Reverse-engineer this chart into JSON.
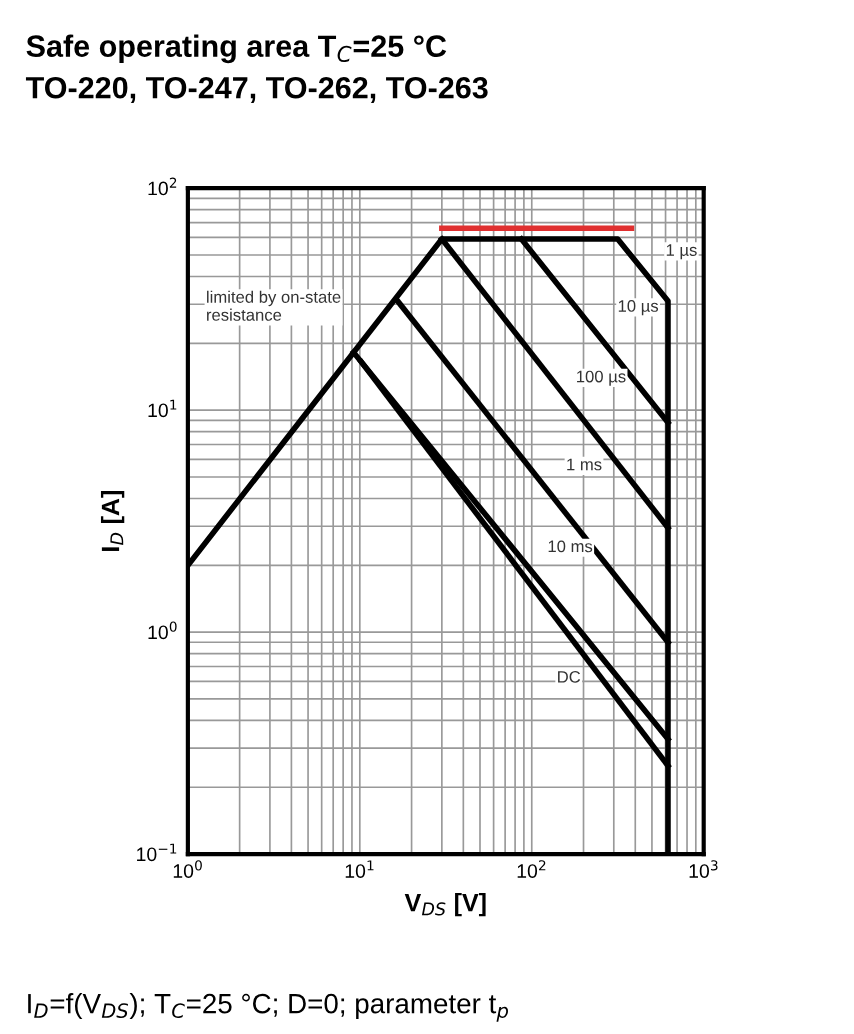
{
  "chart_data": {
    "type": "line",
    "title": "Safe operating area T$_{C}$=25 °C",
    "subtitle": "TO-220, TO-247, TO-262, TO-263",
    "xlabel": "V$_{DS}$ [V]",
    "ylabel": "I$_{D}$ [A]",
    "log": "xy",
    "xlim": [
      1,
      1000
    ],
    "ylim": [
      0.1,
      100
    ],
    "xticks": [
      {
        "value": 1,
        "label": "10$^{0}$"
      },
      {
        "value": 10,
        "label": "10$^{1}$"
      },
      {
        "value": 100,
        "label": "10$^{2}$"
      },
      {
        "value": 1000,
        "label": "10$^{3}$"
      }
    ],
    "yticks": [
      {
        "value": 0.1,
        "label": "10$^{−1}$"
      },
      {
        "value": 1,
        "label": "10$^{0}$"
      },
      {
        "value": 10,
        "label": "10$^{1}$"
      },
      {
        "value": 100,
        "label": "10$^{2}$"
      }
    ],
    "grid": true,
    "marker": "none",
    "line_style": "solid",
    "series": [
      {
        "color": "#000000",
        "x": [
          1,
          30,
          316,
          620,
          620
        ],
        "values": [
          2.0,
          59,
          59,
          31,
          0.1
        ]
      },
      {
        "color": "#000000",
        "x": [
          87,
          620
        ],
        "values": [
          59,
          8.8
        ]
      },
      {
        "color": "#000000",
        "x": [
          30,
          620
        ],
        "values": [
          59,
          2.95
        ]
      },
      {
        "color": "#000000",
        "x": [
          16.6,
          620
        ],
        "values": [
          31,
          0.9
        ]
      },
      {
        "color": "#000000",
        "x": [
          9.2,
          620
        ],
        "values": [
          18.2,
          0.33
        ]
      },
      {
        "color": "#000000",
        "x": [
          10.2,
          620
        ],
        "values": [
          16.5,
          0.25
        ]
      },
      {
        "color": "#e03030",
        "x": [
          30,
          380
        ],
        "values": [
          66,
          66
        ]
      }
    ],
    "annotations": [
      "1 µs",
      "10 µs",
      "100 µs",
      "1 ms",
      "10 ms",
      "DC",
      "limited by on-state\nresistance",
      "I$_{D}$=f(V$_{DS}$); T$_{C}$=25 °C; D=0; parameter t$_{p}$"
    ]
  }
}
